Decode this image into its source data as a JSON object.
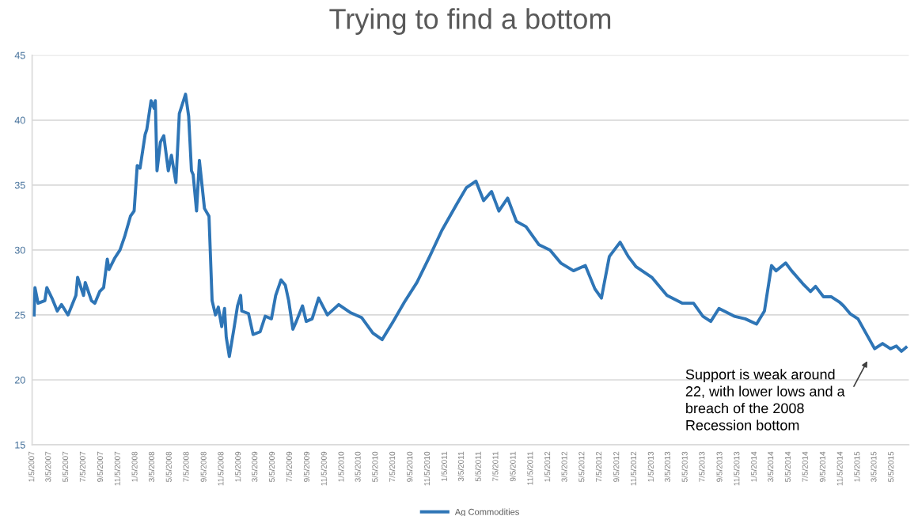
{
  "chart_data": {
    "type": "line",
    "title": "Trying to find a bottom",
    "series": [
      {
        "name": "Ag Commodities",
        "color": "#2e75b6",
        "x": [
          "2007-01-12",
          "2007-01-15",
          "2007-01-26",
          "2007-02-19",
          "2007-02-26",
          "2007-03-16",
          "2007-04-04",
          "2007-04-19",
          "2007-05-12",
          "2007-06-09",
          "2007-06-15",
          "2007-07-06",
          "2007-07-12",
          "2007-08-03",
          "2007-08-15",
          "2007-09-01",
          "2007-09-15",
          "2007-09-28",
          "2007-10-04",
          "2007-10-25",
          "2007-11-12",
          "2007-11-28",
          "2007-12-19",
          "2008-01-01",
          "2008-01-12",
          "2008-01-22",
          "2008-02-09",
          "2008-02-15",
          "2008-03-01",
          "2008-03-12",
          "2008-03-16",
          "2008-03-22",
          "2008-04-03",
          "2008-04-15",
          "2008-05-01",
          "2008-05-12",
          "2008-05-28",
          "2008-06-09",
          "2008-07-01",
          "2008-07-12",
          "2008-07-22",
          "2008-07-28",
          "2008-08-09",
          "2008-08-19",
          "2008-09-06",
          "2008-09-22",
          "2008-10-03",
          "2008-10-15",
          "2008-10-25",
          "2008-11-06",
          "2008-11-16",
          "2008-11-22",
          "2008-12-03",
          "2008-12-19",
          "2009-01-01",
          "2009-01-12",
          "2009-01-16",
          "2009-02-09",
          "2009-02-25",
          "2009-03-22",
          "2009-04-09",
          "2009-05-01",
          "2009-05-16",
          "2009-06-04",
          "2009-06-19",
          "2009-07-01",
          "2009-07-16",
          "2009-07-28",
          "2009-08-19",
          "2009-09-01",
          "2009-09-22",
          "2009-10-15",
          "2009-11-15",
          "2009-12-25",
          "2010-02-03",
          "2010-03-16",
          "2010-04-25",
          "2010-05-28",
          "2010-07-06",
          "2010-08-15",
          "2010-09-28",
          "2010-11-12",
          "2010-12-25",
          "2011-02-15",
          "2011-03-22",
          "2011-04-25",
          "2011-05-22",
          "2011-06-19",
          "2011-07-15",
          "2011-08-15",
          "2011-09-15",
          "2011-10-19",
          "2011-12-04",
          "2012-01-12",
          "2012-02-19",
          "2012-04-04",
          "2012-05-16",
          "2012-06-19",
          "2012-07-12",
          "2012-08-09",
          "2012-09-16",
          "2012-10-15",
          "2012-11-12",
          "2013-01-06",
          "2013-03-01",
          "2013-04-25",
          "2013-06-03",
          "2013-07-06",
          "2013-08-03",
          "2013-09-01",
          "2013-10-25",
          "2013-12-03",
          "2014-01-12",
          "2014-02-09",
          "2014-03-06",
          "2014-03-22",
          "2014-04-25",
          "2014-05-16",
          "2014-06-25",
          "2014-07-22",
          "2014-08-09",
          "2014-09-06",
          "2014-10-03",
          "2014-11-01",
          "2014-11-16",
          "2014-12-09",
          "2015-01-06",
          "2015-02-03",
          "2015-03-06",
          "2015-04-03",
          "2015-05-01",
          "2015-05-22",
          "2015-06-09",
          "2015-06-25"
        ],
        "values": [
          25.0,
          27.1,
          25.9,
          26.1,
          27.1,
          26.3,
          25.3,
          25.8,
          25.0,
          26.5,
          27.9,
          26.5,
          27.5,
          26.1,
          25.9,
          26.8,
          27.1,
          29.3,
          28.5,
          29.4,
          30.0,
          31.0,
          32.6,
          33.0,
          36.5,
          36.3,
          38.9,
          39.3,
          41.5,
          40.9,
          41.5,
          36.1,
          38.3,
          38.8,
          36.1,
          37.3,
          35.2,
          40.5,
          42.0,
          40.3,
          36.1,
          35.8,
          33.0,
          36.9,
          33.2,
          32.6,
          26.1,
          25.0,
          25.6,
          24.1,
          25.5,
          23.3,
          21.8,
          23.9,
          25.7,
          26.5,
          25.3,
          25.1,
          23.5,
          23.7,
          24.9,
          24.7,
          26.5,
          27.7,
          27.3,
          26.1,
          23.9,
          24.5,
          25.7,
          24.5,
          24.7,
          26.3,
          25.0,
          25.8,
          25.2,
          24.8,
          23.6,
          23.1,
          24.5,
          26.0,
          27.5,
          29.5,
          31.5,
          33.5,
          34.8,
          35.3,
          33.8,
          34.5,
          33.0,
          34.0,
          32.2,
          31.8,
          30.4,
          30.0,
          29.0,
          28.4,
          28.8,
          27.0,
          26.3,
          29.5,
          30.6,
          29.5,
          28.7,
          27.9,
          26.5,
          25.9,
          25.9,
          24.9,
          24.5,
          25.5,
          24.9,
          24.7,
          24.3,
          25.3,
          28.8,
          28.4,
          29.0,
          28.4,
          27.4,
          26.8,
          27.2,
          26.4,
          26.4,
          26.0,
          25.7,
          25.1,
          24.7,
          23.6,
          22.4,
          22.8,
          22.4,
          22.6,
          22.2,
          22.5
        ]
      }
    ],
    "ylim": [
      15,
      45
    ],
    "yticks": [
      15,
      20,
      25,
      30,
      35,
      40,
      45
    ],
    "xlim": [
      "2007-01-05",
      "2015-07-05"
    ],
    "xticks": [
      {
        "value": "2007-01-05",
        "label": "1/5/2007"
      },
      {
        "value": "2007-03-05",
        "label": "3/5/2007"
      },
      {
        "value": "2007-05-05",
        "label": "5/5/2007"
      },
      {
        "value": "2007-07-05",
        "label": "7/5/2007"
      },
      {
        "value": "2007-09-05",
        "label": "9/5/2007"
      },
      {
        "value": "2007-11-05",
        "label": "11/5/2007"
      },
      {
        "value": "2008-01-05",
        "label": "1/5/2008"
      },
      {
        "value": "2008-03-05",
        "label": "3/5/2008"
      },
      {
        "value": "2008-05-05",
        "label": "5/5/2008"
      },
      {
        "value": "2008-07-05",
        "label": "7/5/2008"
      },
      {
        "value": "2008-09-05",
        "label": "9/5/2008"
      },
      {
        "value": "2008-11-05",
        "label": "11/5/2008"
      },
      {
        "value": "2009-01-05",
        "label": "1/5/2009"
      },
      {
        "value": "2009-03-05",
        "label": "3/5/2009"
      },
      {
        "value": "2009-05-05",
        "label": "5/5/2009"
      },
      {
        "value": "2009-07-05",
        "label": "7/5/2009"
      },
      {
        "value": "2009-09-05",
        "label": "9/5/2009"
      },
      {
        "value": "2009-11-05",
        "label": "11/5/2009"
      },
      {
        "value": "2010-01-05",
        "label": "1/5/2010"
      },
      {
        "value": "2010-03-05",
        "label": "3/5/2010"
      },
      {
        "value": "2010-05-05",
        "label": "5/5/2010"
      },
      {
        "value": "2010-07-05",
        "label": "7/5/2010"
      },
      {
        "value": "2010-09-05",
        "label": "9/5/2010"
      },
      {
        "value": "2010-11-05",
        "label": "11/5/2010"
      },
      {
        "value": "2011-01-05",
        "label": "1/5/2011"
      },
      {
        "value": "2011-03-05",
        "label": "3/5/2011"
      },
      {
        "value": "2011-05-05",
        "label": "5/5/2011"
      },
      {
        "value": "2011-07-05",
        "label": "7/5/2011"
      },
      {
        "value": "2011-09-05",
        "label": "9/5/2011"
      },
      {
        "value": "2011-11-05",
        "label": "11/5/2011"
      },
      {
        "value": "2012-01-05",
        "label": "1/5/2012"
      },
      {
        "value": "2012-03-05",
        "label": "3/5/2012"
      },
      {
        "value": "2012-05-05",
        "label": "5/5/2012"
      },
      {
        "value": "2012-07-05",
        "label": "7/5/2012"
      },
      {
        "value": "2012-09-05",
        "label": "9/5/2012"
      },
      {
        "value": "2012-11-05",
        "label": "11/5/2012"
      },
      {
        "value": "2013-01-05",
        "label": "1/5/2013"
      },
      {
        "value": "2013-03-05",
        "label": "3/5/2013"
      },
      {
        "value": "2013-05-05",
        "label": "5/5/2013"
      },
      {
        "value": "2013-07-05",
        "label": "7/5/2013"
      },
      {
        "value": "2013-09-05",
        "label": "9/5/2013"
      },
      {
        "value": "2013-11-05",
        "label": "11/5/2013"
      },
      {
        "value": "2014-01-05",
        "label": "1/5/2014"
      },
      {
        "value": "2014-03-05",
        "label": "3/5/2014"
      },
      {
        "value": "2014-05-05",
        "label": "5/5/2014"
      },
      {
        "value": "2014-07-05",
        "label": "7/5/2014"
      },
      {
        "value": "2014-09-05",
        "label": "9/5/2014"
      },
      {
        "value": "2014-11-05",
        "label": "11/5/2014"
      },
      {
        "value": "2015-01-05",
        "label": "1/5/2015"
      },
      {
        "value": "2015-03-05",
        "label": "3/5/2015"
      },
      {
        "value": "2015-05-05",
        "label": "5/5/2015"
      }
    ],
    "grid": "y",
    "legend": "bottom",
    "marker": "none",
    "line_style": "solid",
    "annotations": [
      "Support is weak around\n22, with lower lows and a\nbreach of the 2008\nRecession bottom"
    ]
  }
}
